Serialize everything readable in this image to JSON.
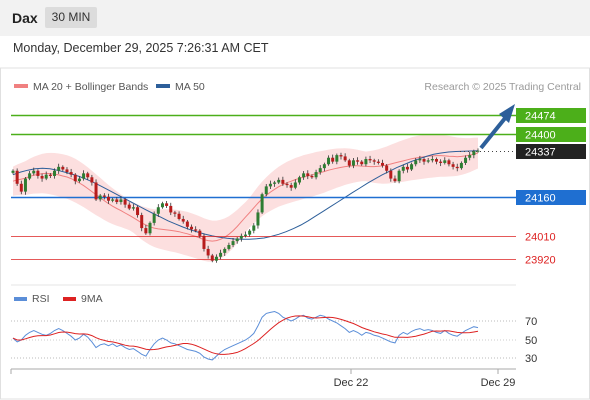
{
  "header": {
    "symbol": "Dax",
    "timeframe": "30 MIN",
    "datetime": "Monday, December 29, 2025 7:26:31 AM CET"
  },
  "legend": {
    "items": [
      {
        "label": "MA 20 + Bollinger Bands",
        "color": "#f08080"
      },
      {
        "label": "MA 50",
        "color": "#2d5f9a"
      }
    ],
    "credit": "Research © 2025 Trading Central"
  },
  "levels": [
    {
      "value": 24474,
      "label": "24474",
      "color": "#4caf1a",
      "style": "solid",
      "boxed": true
    },
    {
      "value": 24400,
      "label": "24400",
      "color": "#4caf1a",
      "style": "solid",
      "boxed": true
    },
    {
      "value": 24337,
      "label": "24337",
      "color": "#222222",
      "style": "dotted",
      "boxed": true
    },
    {
      "value": 24160,
      "label": "24160",
      "color": "#1f6fd1",
      "style": "solid",
      "boxed": true
    },
    {
      "value": 24010,
      "label": "24010",
      "color": "#dd2222",
      "style": "thin",
      "boxed": false
    },
    {
      "value": 23920,
      "label": "23920",
      "color": "#dd2222",
      "style": "thin",
      "boxed": false
    }
  ],
  "rsi_legend": [
    {
      "label": "RSI",
      "color": "#5b8ed8"
    },
    {
      "label": "9MA",
      "color": "#dd2222"
    }
  ],
  "rsi_ticks": [
    "70",
    "50",
    "30"
  ],
  "x_labels": [
    "Dec 22",
    "Dec 29"
  ],
  "chart_data": {
    "type": "candlestick",
    "ylim": [
      23860,
      24520
    ],
    "closes": [
      24260,
      24210,
      24180,
      24230,
      24250,
      24260,
      24240,
      24230,
      24245,
      24240,
      24260,
      24275,
      24265,
      24255,
      24245,
      24220,
      24230,
      24250,
      24235,
      24215,
      24150,
      24165,
      24160,
      24145,
      24150,
      24140,
      24150,
      24130,
      24115,
      24120,
      24090,
      24040,
      24020,
      24060,
      24095,
      24120,
      24135,
      24125,
      24100,
      24095,
      24075,
      24065,
      24045,
      24035,
      24030,
      24010,
      23960,
      23935,
      23915,
      23930,
      23945,
      23960,
      23975,
      23990,
      24000,
      24010,
      24015,
      24030,
      24050,
      24100,
      24170,
      24200,
      24210,
      24215,
      24225,
      24210,
      24205,
      24195,
      24215,
      24235,
      24250,
      24240,
      24235,
      24255,
      24270,
      24285,
      24310,
      24295,
      24320,
      24315,
      24300,
      24280,
      24300,
      24295,
      24285,
      24305,
      24300,
      24295,
      24290,
      24280,
      24260,
      24230,
      24220,
      24260,
      24275,
      24265,
      24285,
      24300,
      24305,
      24295,
      24300,
      24305,
      24295,
      24290,
      24300,
      24285,
      24275,
      24270,
      24290,
      24310,
      24320,
      24335,
      24337
    ],
    "opens_offset": 8,
    "ma20": [
      24220,
      24225,
      24228,
      24232,
      24238,
      24243,
      24246,
      24249,
      24250,
      24249,
      24247,
      24244,
      24240,
      24236,
      24230,
      24222,
      24213,
      24203,
      24192,
      24180,
      24168,
      24157,
      24145,
      24134,
      24124,
      24115,
      24107,
      24098,
      24089,
      24080,
      24070,
      24060,
      24052,
      24045,
      24040,
      24037,
      24035,
      24033,
      24031,
      24029,
      24026,
      24022,
      24018,
      24013,
      24008,
      24002,
      23996,
      23992,
      23990,
      23992,
      23997,
      24005,
      24016,
      24030,
      24046,
      24064,
      24082,
      24100,
      24118,
      24136,
      24152,
      24166,
      24178,
      24189,
      24199,
      24207,
      24214,
      24220,
      24226,
      24231,
      24236,
      24240,
      24244,
      24249,
      24253,
      24257,
      24262,
      24266,
      24270,
      24273,
      24276,
      24278,
      24279,
      24279,
      24278,
      24277,
      24276,
      24276,
      24277,
      24279,
      24282,
      24286,
      24290,
      24294,
      24298,
      24302,
      24306,
      24309,
      24312,
      24314,
      24316,
      24317,
      24318,
      24318,
      24317,
      24316,
      24315,
      24314,
      24315,
      24317,
      24320,
      24324,
      24328
    ],
    "ma50": [
      24245,
      24255,
      24262,
      24268,
      24270,
      24268,
      24262,
      24255,
      24247,
      24238,
      24227,
      24214,
      24200,
      24185,
      24170,
      24155,
      24140,
      24125,
      24110,
      24096,
      24082,
      24068,
      24056,
      24044,
      24034,
      24025,
      24017,
      24010,
      24005,
      24001,
      23998,
      23997,
      23997,
      23999,
      24002,
      24008,
      24016,
      24026,
      24038,
      24052,
      24068,
      24086,
      24104,
      24122,
      24140,
      24158,
      24176,
      24194,
      24212,
      24228,
      24244,
      24258,
      24272,
      24284,
      24296,
      24306,
      24315,
      24323,
      24328,
      24332,
      24334,
      24335,
      24336,
      24337
    ],
    "bb_width": 70,
    "rsi": [
      52,
      48,
      50,
      55,
      58,
      60,
      58,
      56,
      55,
      57,
      60,
      62,
      60,
      57,
      54,
      50,
      52,
      56,
      53,
      48,
      42,
      45,
      46,
      44,
      46,
      43,
      45,
      42,
      40,
      41,
      38,
      35,
      33,
      40,
      46,
      50,
      52,
      50,
      47,
      46,
      44,
      42,
      40,
      39,
      38,
      36,
      32,
      30,
      29,
      33,
      37,
      40,
      42,
      44,
      46,
      48,
      50,
      53,
      57,
      65,
      74,
      78,
      79,
      80,
      78,
      74,
      72,
      70,
      72,
      75,
      76,
      73,
      72,
      74,
      76,
      75,
      72,
      70,
      68,
      65,
      62,
      58,
      60,
      58,
      55,
      58,
      57,
      55,
      54,
      52,
      50,
      48,
      47,
      55,
      58,
      56,
      59,
      61,
      62,
      60,
      61,
      60,
      58,
      57,
      60,
      57,
      55,
      54,
      57,
      60,
      62,
      64,
      63
    ],
    "rsi_ma_lag": 9
  }
}
